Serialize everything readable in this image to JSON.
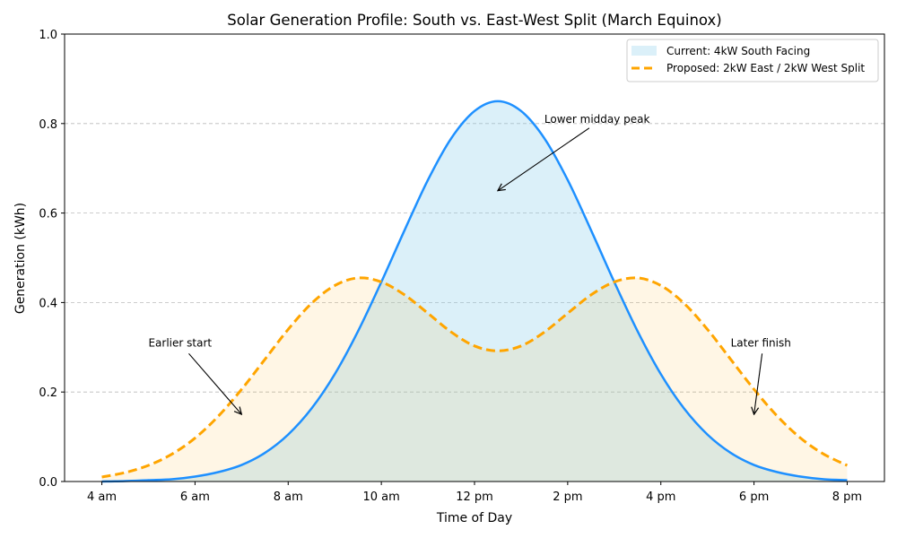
{
  "chart_data": {
    "type": "area",
    "title": "Solar Generation Profile: South vs. East-West Split (March Equinox)",
    "xlabel": "Time of Day",
    "ylabel": "Generation (kWh)",
    "xlim": [
      3.2,
      20.8
    ],
    "ylim": [
      0,
      1.0
    ],
    "x_ticks": [
      4,
      6,
      8,
      10,
      12,
      14,
      16,
      18,
      20
    ],
    "x_tick_labels": [
      "4 am",
      "6 am",
      "8 am",
      "10 am",
      "12 pm",
      "2 pm",
      "4 pm",
      "6 pm",
      "8 pm"
    ],
    "y_ticks": [
      0,
      0.2,
      0.4,
      0.6,
      0.8,
      1.0
    ],
    "y_tick_labels": [
      "0.0",
      "0.2",
      "0.4",
      "0.6",
      "0.8",
      "1.0"
    ],
    "grid": "horizontal dashed",
    "legend_position": "top-right",
    "x": [
      4,
      4.5,
      5,
      5.5,
      6,
      6.5,
      7,
      7.5,
      8,
      8.5,
      9,
      9.5,
      10,
      10.5,
      11,
      11.5,
      12,
      12.5,
      13,
      13.5,
      14,
      14.5,
      15,
      15.5,
      16,
      16.5,
      17,
      17.5,
      18,
      18.5,
      19,
      19.5,
      20
    ],
    "series": [
      {
        "name": "Current: 4kW South Facing",
        "style": "solid line with filled area",
        "line_color": "#1e90ff",
        "fill_color": "#87ceeb",
        "values": [
          0.0,
          0.001,
          0.003,
          0.005,
          0.011,
          0.021,
          0.037,
          0.064,
          0.105,
          0.163,
          0.24,
          0.336,
          0.446,
          0.562,
          0.674,
          0.767,
          0.828,
          0.85,
          0.828,
          0.767,
          0.674,
          0.562,
          0.446,
          0.336,
          0.24,
          0.163,
          0.105,
          0.064,
          0.037,
          0.021,
          0.011,
          0.005,
          0.003
        ]
      },
      {
        "name": "Proposed: 2kW East / 2kW West Split",
        "style": "dashed line with filled area",
        "line_color": "#ffa500",
        "fill_color": "#ffa500",
        "values": [
          0.01,
          0.02,
          0.036,
          0.061,
          0.097,
          0.146,
          0.206,
          0.273,
          0.34,
          0.398,
          0.438,
          0.455,
          0.446,
          0.417,
          0.376,
          0.334,
          0.303,
          0.292,
          0.303,
          0.334,
          0.376,
          0.417,
          0.446,
          0.455,
          0.438,
          0.398,
          0.34,
          0.273,
          0.206,
          0.146,
          0.097,
          0.061,
          0.036
        ]
      }
    ],
    "annotations": [
      {
        "text": "Lower midday peak",
        "text_xy": [
          13.5,
          0.81
        ],
        "arrow_to": [
          12.5,
          0.65
        ]
      },
      {
        "text": "Earlier start",
        "text_xy": [
          5.0,
          0.31
        ],
        "arrow_to": [
          7.0,
          0.15
        ]
      },
      {
        "text": "Later finish",
        "text_xy": [
          17.5,
          0.31
        ],
        "arrow_to": [
          18.0,
          0.15
        ]
      }
    ]
  }
}
